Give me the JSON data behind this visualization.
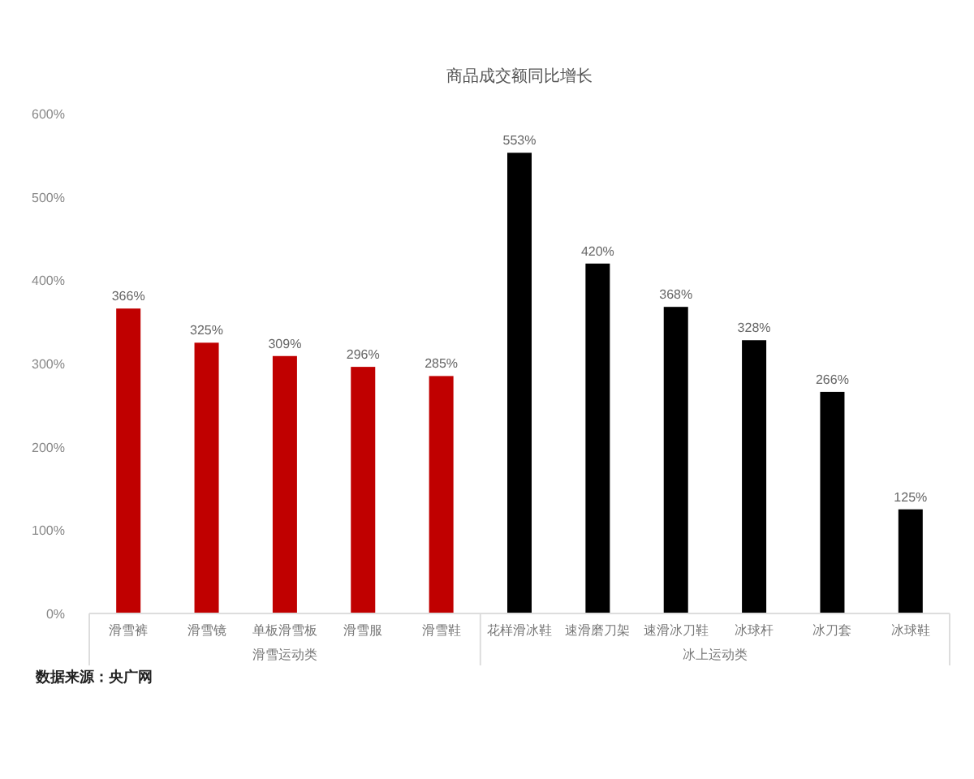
{
  "chart_data": {
    "type": "bar",
    "title": "商品成交额同比增长",
    "categories": [
      "滑雪裤",
      "滑雪镜",
      "单板滑雪板",
      "滑雪服",
      "滑雪鞋",
      "花样滑冰鞋",
      "速滑磨刀架",
      "速滑冰刀鞋",
      "冰球杆",
      "冰刀套",
      "冰球鞋"
    ],
    "values": [
      366,
      325,
      309,
      296,
      285,
      553,
      420,
      368,
      328,
      266,
      125
    ],
    "value_labels": [
      "366%",
      "325%",
      "309%",
      "296%",
      "285%",
      "553%",
      "420%",
      "368%",
      "328%",
      "266%",
      "125%"
    ],
    "colors": [
      "#c00000",
      "#c00000",
      "#c00000",
      "#c00000",
      "#c00000",
      "#000000",
      "#000000",
      "#000000",
      "#000000",
      "#000000",
      "#000000"
    ],
    "ylim": [
      0,
      600
    ],
    "yticks": [
      {
        "value": 0,
        "label": "0%"
      },
      {
        "value": 100,
        "label": "100%"
      },
      {
        "value": 200,
        "label": "200%"
      },
      {
        "value": 300,
        "label": "300%"
      },
      {
        "value": 400,
        "label": "400%"
      },
      {
        "value": 500,
        "label": "500%"
      },
      {
        "value": 600,
        "label": "600%"
      }
    ],
    "grid": false,
    "annotations": [
      "滑雪运动类",
      "冰上运动类",
      "数据来源：央广网"
    ]
  }
}
